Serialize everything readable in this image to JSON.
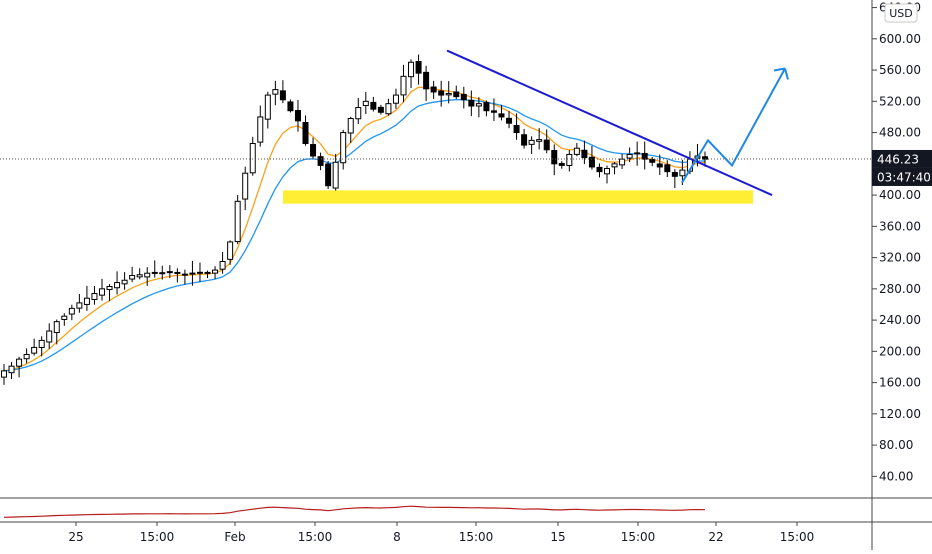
{
  "chart_data": {
    "type": "candlestick",
    "currency_button": "USD",
    "price_axis": {
      "tick_labels": [
        "640.00",
        "600.00",
        "560.00",
        "520.00",
        "480.00",
        "440.00",
        "400.00",
        "360.00",
        "320.00",
        "280.00",
        "240.00",
        "200.00",
        "160.00",
        "120.00",
        "80.00",
        "40.00"
      ],
      "ticks": [
        640,
        600,
        560,
        520,
        480,
        440,
        400,
        360,
        320,
        280,
        240,
        200,
        160,
        120,
        80,
        40
      ],
      "range": [
        0,
        650
      ]
    },
    "time_axis": {
      "tick_labels": [
        "25",
        "15:00",
        "Feb",
        "15:00",
        "8",
        "15:00",
        "15",
        "15:00",
        "22",
        "15:00"
      ]
    },
    "current_price": "446.23",
    "countdown": "03:47:40",
    "last_price_value": 446.23,
    "series_ohlc_close": [
      175,
      181,
      190,
      196,
      205,
      214,
      226,
      238,
      245,
      255,
      262,
      268,
      274,
      280,
      283,
      288,
      291,
      297,
      298,
      300,
      301,
      300,
      302,
      301,
      298,
      299,
      300,
      301,
      304,
      315,
      340,
      392,
      428,
      466,
      500,
      528,
      535,
      522,
      508,
      495,
      466,
      450,
      438,
      412,
      442,
      480,
      498,
      512,
      520,
      510,
      506,
      517,
      528,
      552,
      570,
      556,
      536,
      532,
      528,
      530,
      526,
      522,
      514,
      517,
      508,
      506,
      500,
      492,
      480,
      464,
      470,
      471,
      458,
      440,
      438,
      452,
      460,
      448,
      436,
      430,
      434,
      440,
      446,
      452,
      454,
      446,
      442,
      436,
      430,
      424,
      432,
      446,
      450,
      446
    ],
    "support_zone": {
      "low": 389,
      "high": 406
    },
    "trendline_start_price": 585,
    "trendline_end_price": 400,
    "projection_prices": [
      416,
      470,
      438,
      562
    ],
    "moving_averages": [
      {
        "color": "#f7a21b"
      },
      {
        "color": "#2196f3"
      }
    ],
    "colors": {
      "zone": "#ffee33",
      "trendline": "#1a1ad6",
      "projection": "#1e88e5",
      "candle": "#000000",
      "price_label_bg": "#131722",
      "lower_indicator": "#b71c1c"
    },
    "grid": false
  }
}
